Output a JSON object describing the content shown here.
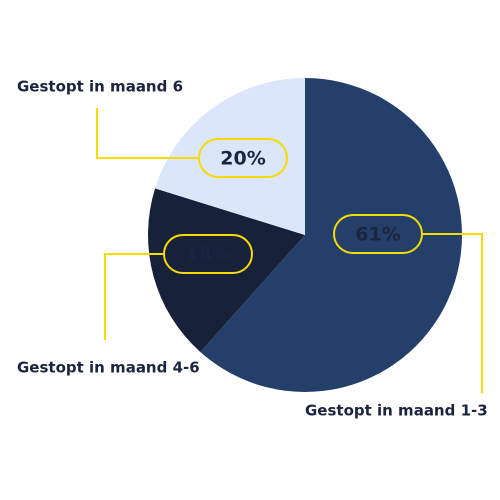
{
  "chart_data": {
    "type": "pie",
    "categories": [
      "Gestopt in maand 1-3",
      "Gestopt in maand 4-6",
      "Gestopt in maand 6"
    ],
    "values": [
      61,
      18,
      20
    ],
    "value_labels": [
      "61%",
      "18%",
      "20%"
    ],
    "colors": [
      "#253f6b",
      "#17213a",
      "#dbe6fb"
    ],
    "label_border_color": "#f5dc00"
  }
}
